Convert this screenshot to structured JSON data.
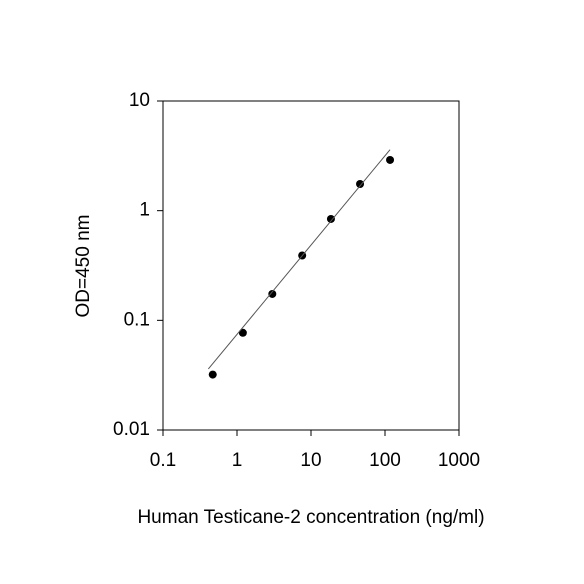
{
  "chart_data": {
    "type": "scatter",
    "x_label": "Human Testicane-2 concentration (ng/ml)",
    "y_label": "OD=450 nm",
    "xscale": "log",
    "yscale": "log",
    "xlim": [
      0.1,
      1000
    ],
    "ylim": [
      0.01,
      10
    ],
    "xticks": [
      0.1,
      1,
      10,
      100,
      1000
    ],
    "yticks": [
      0.01,
      0.1,
      1,
      10
    ],
    "series": [
      {
        "style": "marker",
        "color": "#000000",
        "x": [
          0.47,
          1.2,
          3.0,
          7.6,
          18.6,
          46,
          117
        ],
        "values": [
          0.032,
          0.077,
          0.174,
          0.39,
          0.84,
          1.75,
          2.9
        ]
      },
      {
        "style": "line",
        "color": "#555555",
        "x": [
          0.41,
          117
        ],
        "values": [
          0.036,
          3.6
        ]
      }
    ]
  }
}
